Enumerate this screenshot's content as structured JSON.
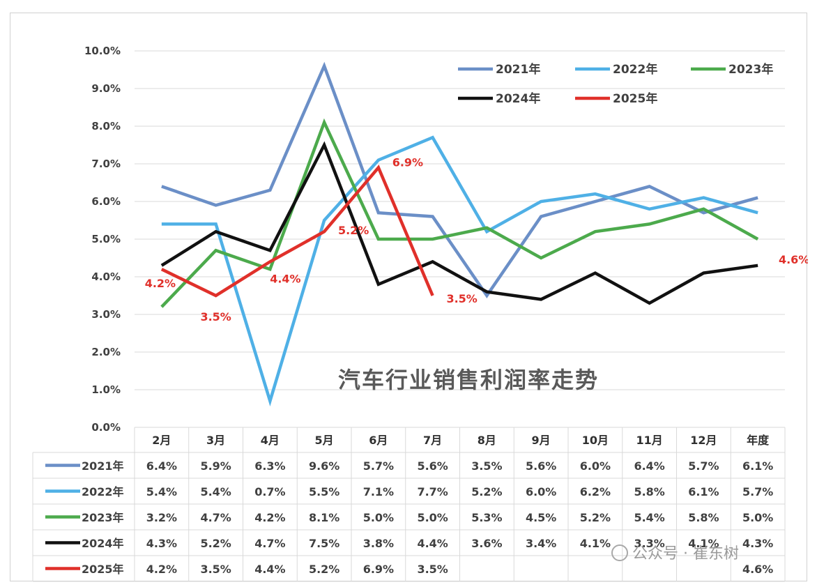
{
  "chart_data": {
    "type": "line",
    "title": "汽车行业销售利润率走势",
    "categories": [
      "2月",
      "3月",
      "4月",
      "5月",
      "6月",
      "7月",
      "8月",
      "9月",
      "10月",
      "11月",
      "12月",
      "年度"
    ],
    "yticks": [
      "0.0%",
      "1.0%",
      "2.0%",
      "3.0%",
      "4.0%",
      "5.0%",
      "6.0%",
      "7.0%",
      "8.0%",
      "9.0%",
      "10.0%"
    ],
    "ylim": [
      0,
      10
    ],
    "grid": true,
    "legend_position": "top-right",
    "series": [
      {
        "name": "2021年",
        "color": "#6b8fc7",
        "values": [
          6.4,
          5.9,
          6.3,
          9.6,
          5.7,
          5.6,
          3.5,
          5.6,
          6.0,
          6.4,
          5.7,
          6.1
        ],
        "cells": [
          "6.4%",
          "5.9%",
          "6.3%",
          "9.6%",
          "5.7%",
          "5.6%",
          "3.5%",
          "5.6%",
          "6.0%",
          "6.4%",
          "5.7%",
          "6.1%"
        ]
      },
      {
        "name": "2022年",
        "color": "#4fb0e6",
        "values": [
          5.4,
          5.4,
          0.7,
          5.5,
          7.1,
          7.7,
          5.2,
          6.0,
          6.2,
          5.8,
          6.1,
          5.7
        ],
        "cells": [
          "5.4%",
          "5.4%",
          "0.7%",
          "5.5%",
          "7.1%",
          "7.7%",
          "5.2%",
          "6.0%",
          "6.2%",
          "5.8%",
          "6.1%",
          "5.7%"
        ]
      },
      {
        "name": "2023年",
        "color": "#4caa4c",
        "values": [
          3.2,
          4.7,
          4.2,
          8.1,
          5.0,
          5.0,
          5.3,
          4.5,
          5.2,
          5.4,
          5.8,
          5.0
        ],
        "cells": [
          "3.2%",
          "4.7%",
          "4.2%",
          "8.1%",
          "5.0%",
          "5.0%",
          "5.3%",
          "4.5%",
          "5.2%",
          "5.4%",
          "5.8%",
          "5.0%"
        ]
      },
      {
        "name": "2024年",
        "color": "#111111",
        "values": [
          4.3,
          5.2,
          4.7,
          7.5,
          3.8,
          4.4,
          3.6,
          3.4,
          4.1,
          3.3,
          4.1,
          4.3
        ],
        "cells": [
          "4.3%",
          "5.2%",
          "4.7%",
          "7.5%",
          "3.8%",
          "4.4%",
          "3.6%",
          "3.4%",
          "4.1%",
          "3.3%",
          "4.1%",
          "4.3%"
        ]
      },
      {
        "name": "2025年",
        "color": "#e0302a",
        "values": [
          4.2,
          3.5,
          4.4,
          5.2,
          6.9,
          3.5,
          null,
          null,
          null,
          null,
          null,
          4.6
        ],
        "cells": [
          "4.2%",
          "3.5%",
          "4.4%",
          "5.2%",
          "6.9%",
          "3.5%",
          "",
          "",
          "",
          "",
          "",
          "4.6%"
        ],
        "data_labels": [
          "4.2%",
          "3.5%",
          "4.4%",
          "5.2%",
          "6.9%",
          "3.5%",
          "",
          "",
          "",
          "",
          "",
          "4.6%"
        ]
      }
    ]
  },
  "watermark": "公众号 · 崔东树"
}
